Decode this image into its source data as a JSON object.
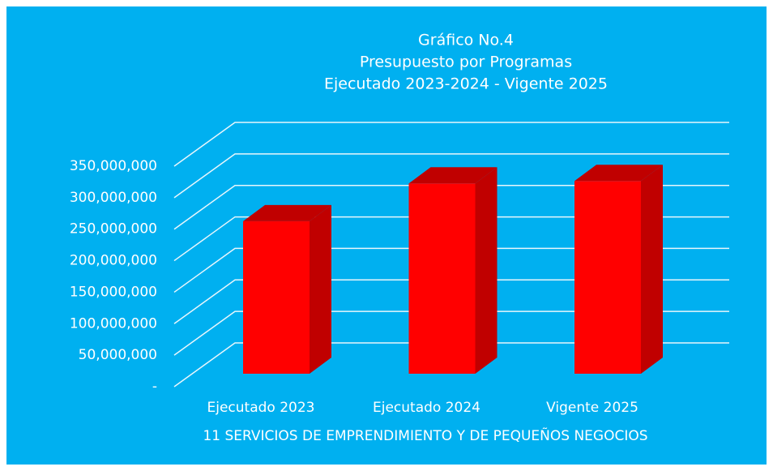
{
  "chart_data": {
    "type": "bar3d",
    "title": [
      "Gráfico No.4",
      "Presupuesto por Programas",
      "Ejecutado 2023-2024 - Vigente 2025"
    ],
    "x_label": "11 SERVICIOS DE EMPRENDIMIENTO Y DE PEQUEÑOS NEGOCIOS",
    "categories": [
      "Ejecutado 2023",
      "Ejecutado 2024",
      "Vigente 2025"
    ],
    "values": [
      242000000,
      302000000,
      306000000
    ],
    "color": "#ff0000",
    "side_color": "#c00000",
    "ylim": [
      0,
      350000000
    ],
    "yticks": [
      {
        "value": 0,
        "label": "-"
      },
      {
        "value": 50000000,
        "label": "50,000,000"
      },
      {
        "value": 100000000,
        "label": "100,000,000"
      },
      {
        "value": 150000000,
        "label": "150,000,000"
      },
      {
        "value": 200000000,
        "label": "200,000,000"
      },
      {
        "value": 250000000,
        "label": "250,000,000"
      },
      {
        "value": 300000000,
        "label": "300,000,000"
      },
      {
        "value": 350000000,
        "label": "350,000,000"
      }
    ],
    "grid": true
  }
}
